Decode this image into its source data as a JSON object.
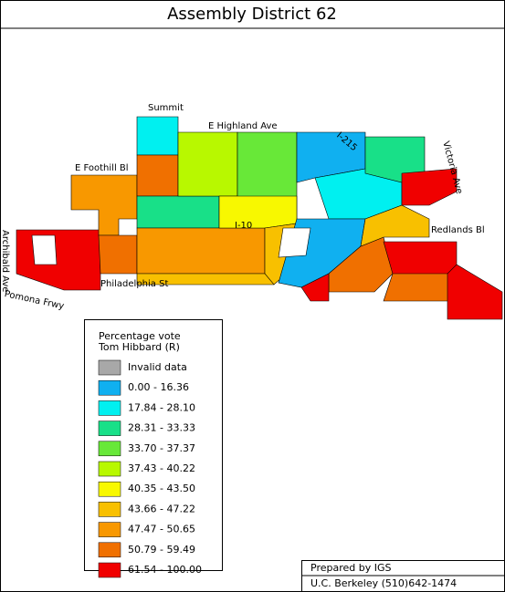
{
  "title": "Assembly District 62",
  "streets": [
    "Summit",
    "E Highland Ave",
    "I-215",
    "Victoria Ave",
    "E Foothill Bl",
    "I-10",
    "Redlands Bl",
    "Archibald Ave",
    "Pomona Frwy",
    "Philadelphia St"
  ],
  "legend": {
    "title": [
      "Percentage vote",
      "Tom Hibbard (R)"
    ],
    "items": [
      {
        "label": "Invalid data",
        "color": "#a8a8a8"
      },
      {
        "label": "0.00  -  16.36",
        "color": "#10b0f0"
      },
      {
        "label": "17.84  -  28.10",
        "color": "#00f0f0"
      },
      {
        "label": "28.31  -  33.33",
        "color": "#18e088"
      },
      {
        "label": "33.70  -  37.37",
        "color": "#68e838"
      },
      {
        "label": "37.43  -  40.22",
        "color": "#b8f800"
      },
      {
        "label": "40.35  -  43.50",
        "color": "#f8f800"
      },
      {
        "label": "43.66  -  47.22",
        "color": "#f8c000"
      },
      {
        "label": "47.47  -  50.65",
        "color": "#f89800"
      },
      {
        "label": "50.79  -  59.49",
        "color": "#f07000"
      },
      {
        "label": "61.54  - 100.00",
        "color": "#f00000"
      }
    ]
  },
  "credits": [
    "Prepared by IGS",
    "U.C. Berkeley (510)642-1474"
  ]
}
